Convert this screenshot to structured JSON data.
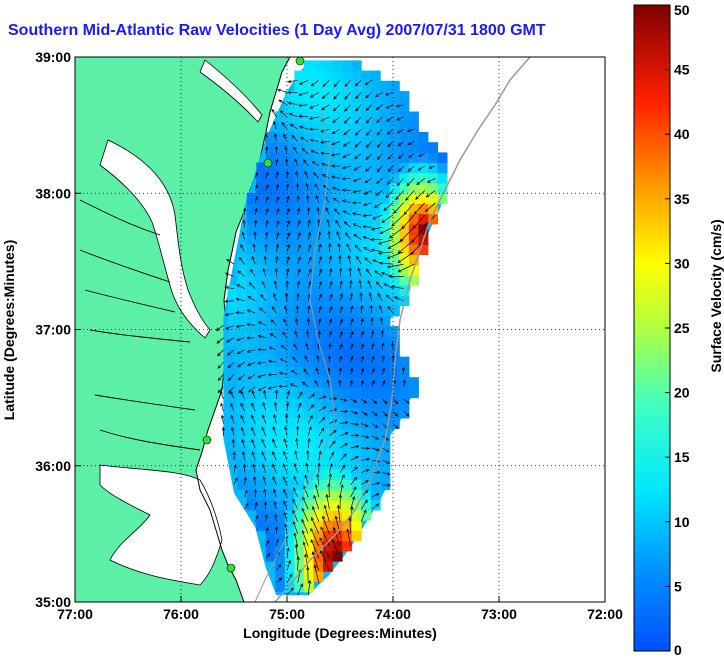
{
  "title": "Southern Mid-Atlantic Raw Velocities (1 Day Avg) 2007/07/31 1800 GMT",
  "map": {
    "xlabel": "Longitude (Degrees:Minutes)",
    "ylabel": "Latitude (Degrees:Minutes)",
    "xlim": [
      -77,
      -72
    ],
    "ylim": [
      35,
      39
    ],
    "x_ticks": [
      {
        "value": -77,
        "label": "77:00"
      },
      {
        "value": -76,
        "label": "76:00"
      },
      {
        "value": -75,
        "label": "75:00"
      },
      {
        "value": -74,
        "label": "74:00"
      },
      {
        "value": -73,
        "label": "73:00"
      },
      {
        "value": -72,
        "label": "72:00"
      }
    ],
    "y_ticks": [
      {
        "value": 35,
        "label": "35:00"
      },
      {
        "value": 36,
        "label": "36:00"
      },
      {
        "value": 37,
        "label": "37:00"
      },
      {
        "value": 38,
        "label": "38:00"
      },
      {
        "value": 39,
        "label": "39:00"
      }
    ],
    "grid": "dotted",
    "land_color": "#5cf0a6",
    "sea_color": "#ffffff",
    "coastline_color": "#000000",
    "shelf_contour_color": "#9a9a9a",
    "station_color": "#33dd33"
  },
  "colorbar": {
    "label": "Surface Velocity (cm/s)",
    "min": 0,
    "max": 50,
    "ticks": [
      {
        "value": 0,
        "label": "0"
      },
      {
        "value": 5,
        "label": "5"
      },
      {
        "value": 10,
        "label": "10"
      },
      {
        "value": 15,
        "label": "15"
      },
      {
        "value": 20,
        "label": "20"
      },
      {
        "value": 25,
        "label": "25"
      },
      {
        "value": 30,
        "label": "30"
      },
      {
        "value": 35,
        "label": "35"
      },
      {
        "value": 40,
        "label": "40"
      },
      {
        "value": 45,
        "label": "45"
      },
      {
        "value": 50,
        "label": "50"
      }
    ],
    "colormap": "jet"
  }
}
